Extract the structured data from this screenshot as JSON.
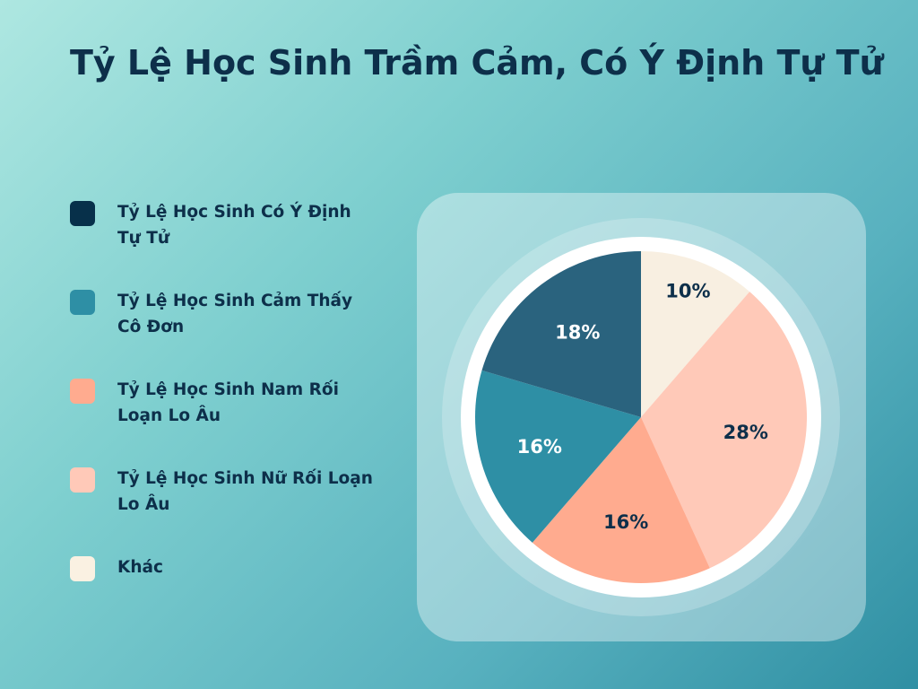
{
  "title": "Tỷ Lệ Học Sinh Trầm Cảm, Có Ý Định Tự Tử",
  "legend": [
    {
      "label": "Tỷ Lệ Học Sinh Có Ý Định Tự Tử",
      "color": "#07304a"
    },
    {
      "label": "Tỷ Lệ Học Sinh Cảm Thấy Cô Đơn",
      "color": "#2e8fa5"
    },
    {
      "label": "Tỷ Lệ Học Sinh Nam Rối Loạn Lo Âu",
      "color": "#ffab8f"
    },
    {
      "label": "Tỷ Lệ Học Sinh Nữ Rối Loạn Lo Âu",
      "color": "#ffc9b8"
    },
    {
      "label": "Khác",
      "color": "#faf1e2"
    }
  ],
  "chart_data": {
    "type": "pie",
    "title": "Tỷ Lệ Học Sinh Trầm Cảm, Có Ý Định Tự Tử",
    "legend_placement": "left",
    "slices": [
      {
        "label": "Khác",
        "value": 10,
        "display": "10%",
        "color": "#f8efe1",
        "text_color": "#0d2f4a"
      },
      {
        "label": "Tỷ Lệ Học Sinh Nữ Rối Loạn Lo Âu",
        "value": 28,
        "display": "28%",
        "color": "#ffc9b8",
        "text_color": "#0d2f4a"
      },
      {
        "label": "Tỷ Lệ Học Sinh Nam Rối Loạn Lo Âu",
        "value": 16,
        "display": "16%",
        "color": "#ffab8f",
        "text_color": "#0d2f4a"
      },
      {
        "label": "Tỷ Lệ Học Sinh Cảm Thấy Cô Đơn",
        "value": 16,
        "display": "16%",
        "color": "#2e8fa5",
        "text_color": "#ffffff"
      },
      {
        "label": "Tỷ Lệ Học Sinh Có Ý Định Tự Tử",
        "value": 18,
        "display": "18%",
        "color": "#2a637e",
        "text_color": "#ffffff"
      }
    ]
  }
}
